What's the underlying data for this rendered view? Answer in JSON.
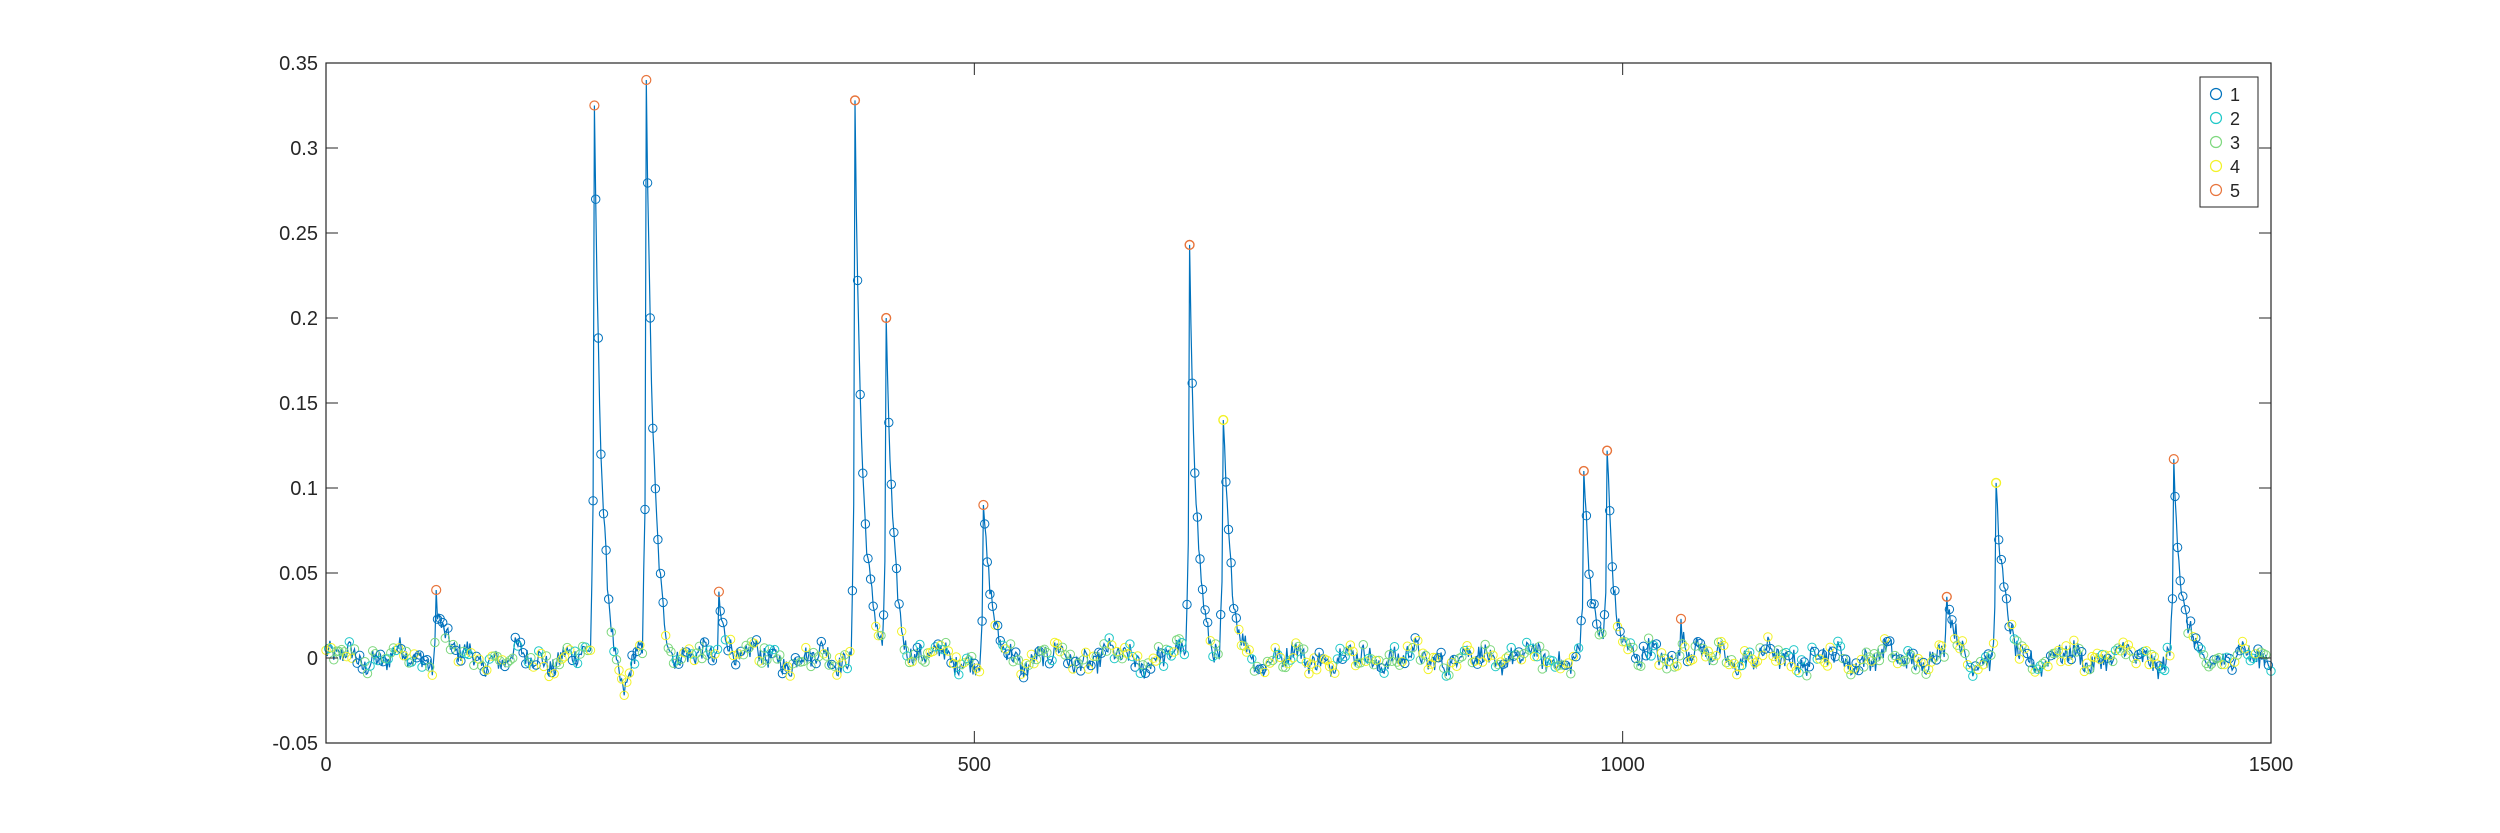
{
  "chart_data": {
    "type": "scatter",
    "title": "",
    "xlabel": "",
    "ylabel": "",
    "xlim": [
      0,
      1500
    ],
    "ylim": [
      -0.05,
      0.35
    ],
    "x_ticks": [
      0,
      500,
      1000,
      1500
    ],
    "y_ticks": [
      -0.05,
      0,
      0.05,
      0.1,
      0.15,
      0.2,
      0.25,
      0.3,
      0.35
    ],
    "x_tick_labels": [
      "0",
      "500",
      "1000",
      "1500"
    ],
    "y_tick_labels": [
      "-0.05",
      "0",
      "0.05",
      "0.1",
      "0.15",
      "0.2",
      "0.25",
      "0.3",
      "0.35"
    ],
    "grid": false,
    "legend_position": "top-right",
    "line": {
      "color": "#0072bd",
      "description_values": "signal trace connecting all samples"
    },
    "series": [
      {
        "name": "1",
        "color": "#0072bd"
      },
      {
        "name": "2",
        "color": "#1ec8c8"
      },
      {
        "name": "3",
        "color": "#7ed87e"
      },
      {
        "name": "4",
        "color": "#f2f227"
      },
      {
        "name": "5",
        "color": "#e8743b"
      }
    ],
    "peaks": [
      {
        "x": 85,
        "y": 0.04,
        "series": "5"
      },
      {
        "x": 207,
        "y": 0.325,
        "series": "5"
      },
      {
        "x": 247,
        "y": 0.34,
        "series": "5"
      },
      {
        "x": 303,
        "y": 0.039,
        "series": "5"
      },
      {
        "x": 408,
        "y": 0.328,
        "series": "5"
      },
      {
        "x": 432,
        "y": 0.2,
        "series": "5"
      },
      {
        "x": 507,
        "y": 0.09,
        "series": "5"
      },
      {
        "x": 666,
        "y": 0.243,
        "series": "5"
      },
      {
        "x": 692,
        "y": 0.14,
        "series": "4"
      },
      {
        "x": 970,
        "y": 0.11,
        "series": "5"
      },
      {
        "x": 988,
        "y": 0.122,
        "series": "5"
      },
      {
        "x": 1045,
        "y": 0.023,
        "series": "5"
      },
      {
        "x": 1250,
        "y": 0.036,
        "series": "5"
      },
      {
        "x": 1288,
        "y": 0.103,
        "series": "4"
      },
      {
        "x": 1425,
        "y": 0.117,
        "series": "5"
      }
    ]
  }
}
